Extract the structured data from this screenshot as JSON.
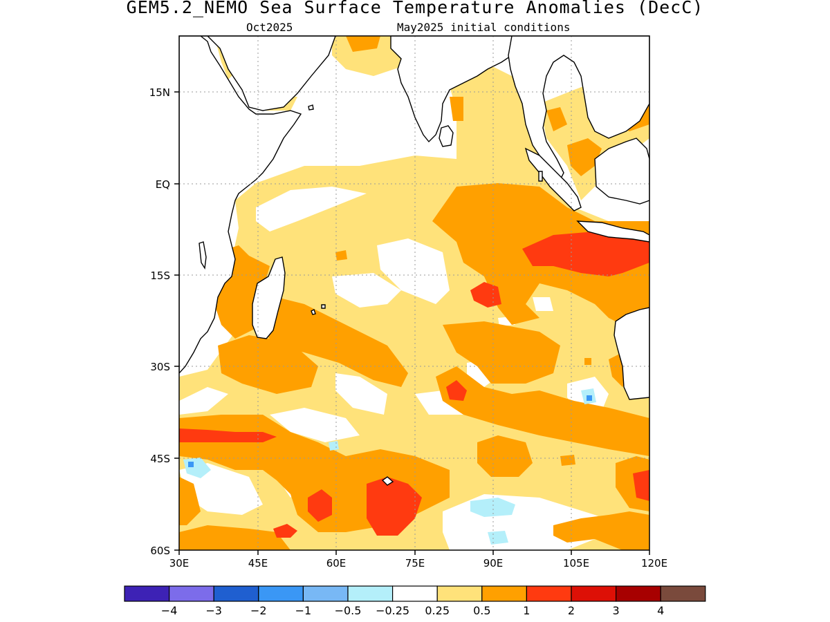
{
  "title": "GEM5.2_NEMO Sea Surface Temperature Anomalies (DecC)",
  "subtitle_left": "Oct2025",
  "subtitle_right": "May2025 initial conditions",
  "lat_ticks": [
    "15N",
    "EQ",
    "15S",
    "30S",
    "45S",
    "60S"
  ],
  "lon_ticks": [
    "30E",
    "45E",
    "60E",
    "75E",
    "90E",
    "105E",
    "120E"
  ],
  "colorbar": {
    "colors": [
      "#3d22b5",
      "#7c6cea",
      "#1f5fd0",
      "#3a97f5",
      "#78b8f5",
      "#b4effa",
      "#ffffff",
      "#ffe27a",
      "#ffa000",
      "#ff3a10",
      "#dd1006",
      "#a70000",
      "#7a4a3c"
    ],
    "labels": [
      "-4",
      "-3",
      "-2",
      "-1",
      "-0.5",
      "-0.25",
      "0.25",
      "0.5",
      "1",
      "2",
      "3",
      "4"
    ]
  },
  "colors": {
    "land": "#ffffff",
    "coast": "#000000",
    "grid": "#9a9a9a",
    "anom_0_25": "#ffe27a",
    "anom_0_5": "#ffa000",
    "anom_1": "#ff3a10",
    "anom_neg": "#b4effa",
    "anom_neg_mid": "#3a97f5"
  }
}
